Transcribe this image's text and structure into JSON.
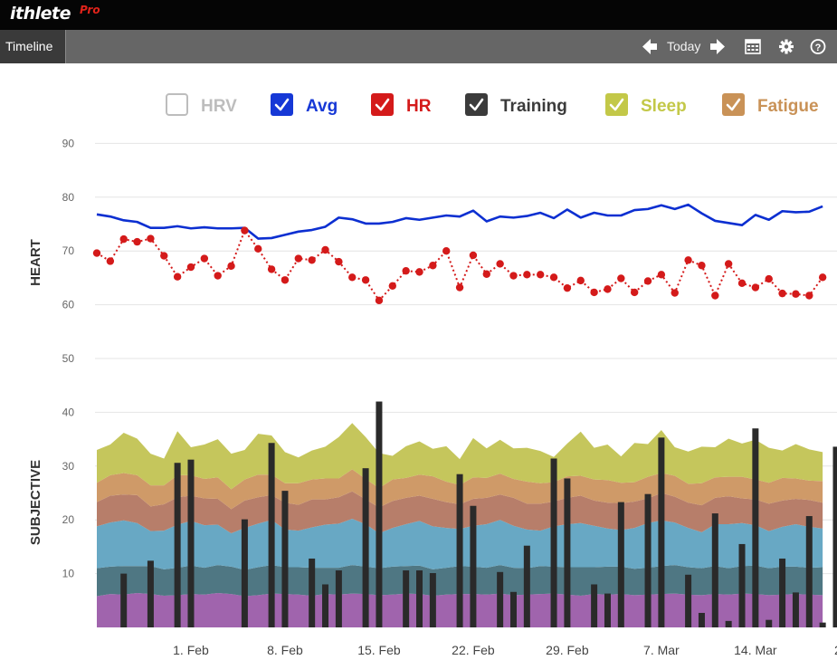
{
  "app": {
    "brand": "ithlete",
    "brand_sup": "Pro"
  },
  "toolbar": {
    "tab_label": "Timeline",
    "today_label": "Today"
  },
  "colors": {
    "avg": "#0c2fd1",
    "hr": "#d41a1a",
    "training": "#2a2a2a",
    "sleep_layer": "#c5c65c",
    "fatigue_layer": "#cf9a68",
    "layer3": "#b77e6a",
    "layer4": "#68a8c4",
    "layer5": "#4f7783",
    "layer6": "#a064ad",
    "hrv": "#bbbbbb"
  },
  "chart_data": {
    "type": "line",
    "legend_position": "top",
    "legend": [
      {
        "label": "HRV",
        "checked": false,
        "color": "#bdbdbd"
      },
      {
        "label": "Avg",
        "checked": true,
        "color": "#1638d6"
      },
      {
        "label": "HR",
        "checked": true,
        "color": "#d41a1a"
      },
      {
        "label": "Training",
        "checked": true,
        "color": "#3b3b3b"
      },
      {
        "label": "Sleep",
        "checked": true,
        "color": "#c3c848"
      },
      {
        "label": "Fatigue",
        "checked": true,
        "color": "#c99257"
      }
    ],
    "ylabel_top": "HEART",
    "ylabel_bottom": "SUBJECTIVE",
    "ylim": [
      0,
      90
    ],
    "yticks": [
      10,
      20,
      30,
      40,
      50,
      60,
      70,
      80,
      90
    ],
    "xticks": [
      "1. Feb",
      "8. Feb",
      "15. Feb",
      "22. Feb",
      "29. Feb",
      "7. Mar",
      "14. Mar"
    ],
    "x_start": "25. Jan",
    "x_end": "16. Mar",
    "grid": true,
    "avg": [
      76.8,
      76.4,
      75.7,
      75.4,
      74.3,
      74.3,
      74.6,
      74.2,
      74.4,
      74.2,
      74.2,
      74.3,
      72.3,
      72.4,
      73.0,
      73.6,
      73.9,
      74.5,
      76.2,
      75.9,
      75.1,
      75.1,
      75.4,
      76.1,
      75.8,
      76.2,
      76.6,
      76.4,
      77.5,
      75.5,
      76.4,
      76.2,
      76.5,
      77.1,
      76.1,
      77.7,
      76.2,
      77.1,
      76.6,
      76.6,
      77.6,
      77.8,
      78.5,
      77.8,
      78.6,
      77.0,
      75.6,
      75.2,
      74.8,
      76.7,
      75.8,
      77.4,
      77.2,
      77.3,
      78.3
    ],
    "hr": [
      69.6,
      68.1,
      72.2,
      71.7,
      72.3,
      69.1,
      65.2,
      67.0,
      68.6,
      65.4,
      67.2,
      73.8,
      70.4,
      66.6,
      64.6,
      68.6,
      68.3,
      70.2,
      68.0,
      65.1,
      64.6,
      60.8,
      63.5,
      66.3,
      66.1,
      67.3,
      70.0,
      63.2,
      69.2,
      65.7,
      67.6,
      65.4,
      65.6,
      65.6,
      65.1,
      63.1,
      64.5,
      62.3,
      62.9,
      64.9,
      62.3,
      64.4,
      65.6,
      62.2,
      68.3,
      67.3,
      61.7,
      67.6,
      64.0,
      63.2,
      64.8,
      62.1,
      62.0,
      61.7,
      65.1
    ],
    "training": [
      {
        "date": "27. Jan",
        "value": 10
      },
      {
        "date": "29. Jan",
        "value": 12.4
      },
      {
        "date": "31. Jan",
        "value": 30.6
      },
      {
        "date": "1. Feb",
        "value": 31.2
      },
      {
        "date": "5. Feb",
        "value": 20.1
      },
      {
        "date": "7. Feb",
        "value": 34.3
      },
      {
        "date": "8. Feb",
        "value": 25.4
      },
      {
        "date": "10. Feb",
        "value": 12.8
      },
      {
        "date": "11. Feb",
        "value": 8
      },
      {
        "date": "12. Feb",
        "value": 10.6
      },
      {
        "date": "14. Feb",
        "value": 29.6
      },
      {
        "date": "15. Feb",
        "value": 42
      },
      {
        "date": "17. Feb",
        "value": 10.6
      },
      {
        "date": "18. Feb",
        "value": 10.6
      },
      {
        "date": "19. Feb",
        "value": 10.1
      },
      {
        "date": "21. Feb",
        "value": 28.5
      },
      {
        "date": "22. Feb",
        "value": 22.6
      },
      {
        "date": "24. Feb",
        "value": 10.3
      },
      {
        "date": "25. Feb",
        "value": 6.6
      },
      {
        "date": "26. Feb",
        "value": 15.2
      },
      {
        "date": "28. Feb",
        "value": 31.4
      },
      {
        "date": "29. Feb",
        "value": 27.7
      },
      {
        "date": "2. Mar",
        "value": 8
      },
      {
        "date": "3. Mar",
        "value": 6.3
      },
      {
        "date": "4. Mar",
        "value": 23.3
      },
      {
        "date": "6. Mar",
        "value": 24.8
      },
      {
        "date": "7. Mar",
        "value": 35.3
      },
      {
        "date": "9. Mar",
        "value": 9.8
      },
      {
        "date": "10. Mar",
        "value": 2.7
      },
      {
        "date": "11. Mar",
        "value": 21.2
      },
      {
        "date": "12. Mar",
        "value": 1.2
      },
      {
        "date": "13. Mar",
        "value": 15.5
      },
      {
        "date": "14. Mar",
        "value": 37
      },
      {
        "date": "15. Mar",
        "value": 1.4
      },
      {
        "date": "16. Mar",
        "value": 12.8
      },
      {
        "date": "17. Mar",
        "value": 6.5
      },
      {
        "date": "18. Mar",
        "value": 20.7
      },
      {
        "date": "19. Mar",
        "value": 0.9
      },
      {
        "date": "20. Mar",
        "value": 33.6
      }
    ],
    "subjective_layers": [
      {
        "values": [
          5.8,
          6.2,
          6.1,
          6.4,
          6.2,
          5.9,
          6,
          6.2,
          6.1,
          6.4,
          6.2,
          5.8,
          6,
          6.3,
          6.2,
          6.1,
          5.9,
          6.2,
          6.1,
          6.3,
          6.2,
          6,
          6.1,
          6.3,
          6.2,
          5.9,
          6.1,
          6.2,
          6.2,
          6.1,
          6.3,
          6,
          6.1,
          6.2,
          6.3,
          6.1,
          5.9,
          6.2,
          6.1,
          6.2,
          6,
          6.1,
          6.2,
          6.3,
          6.1,
          6,
          6.2,
          6.1,
          6.3,
          6.2,
          6,
          6.1,
          6.2,
          6.1,
          6
        ]
      },
      {
        "values": [
          5.2,
          5.1,
          5.3,
          5.0,
          5.2,
          4.9,
          5.1,
          5.3,
          5.0,
          5.2,
          5.1,
          4.9,
          5.2,
          5.3,
          5.0,
          5.1,
          5.2,
          4.9,
          5.0,
          5.3,
          5.1,
          5.0,
          5.2,
          5.1,
          5.3,
          4.9,
          5.0,
          5.2,
          5.1,
          5.0,
          5.3,
          5.1,
          4.9,
          5.2,
          5.0,
          5.1,
          5.3,
          5.0,
          5.2,
          5.1,
          4.9,
          5.0,
          5.2,
          5.3,
          5.1,
          5.0,
          5.2,
          4.9,
          5.1,
          5.3,
          5.0,
          5.2,
          5.1,
          5.0,
          5.2
        ]
      },
      {
        "values": [
          7.8,
          8.2,
          8.5,
          8.0,
          6.5,
          7.2,
          8.0,
          8.3,
          7.9,
          7.5,
          6.2,
          7.8,
          8.1,
          8.4,
          7.0,
          6.8,
          7.5,
          8.0,
          8.2,
          8.6,
          7.9,
          6.5,
          7.2,
          7.8,
          8.3,
          8.0,
          7.4,
          6.9,
          7.6,
          8.1,
          8.4,
          7.8,
          7.2,
          6.6,
          7.5,
          8.0,
          8.2,
          7.7,
          7.1,
          6.8,
          7.6,
          8.3,
          8.5,
          7.9,
          7.3,
          6.7,
          7.8,
          8.2,
          8.0,
          7.5,
          6.9,
          7.4,
          7.9,
          7.6,
          7.2
        ]
      },
      {
        "values": [
          4.5,
          5.0,
          4.8,
          5.2,
          4.6,
          4.9,
          5.1,
          4.7,
          5.0,
          4.8,
          4.5,
          5.1,
          4.9,
          4.6,
          5.0,
          4.8,
          5.2,
          4.7,
          4.9,
          5.1,
          4.6,
          4.8,
          5.0,
          4.9,
          4.7,
          5.1,
          4.8,
          4.6,
          5.0,
          4.9,
          4.7,
          5.2,
          4.8,
          5.0,
          4.6,
          4.9,
          5.1,
          4.7,
          4.8,
          5.0,
          4.9,
          4.6,
          5.1,
          4.8,
          4.7,
          5.0,
          4.9,
          5.2,
          4.6,
          4.8,
          5.1,
          4.9,
          4.7,
          5.0,
          4.8
        ]
      },
      {
        "values": [
          3.6,
          3.8,
          4.0,
          3.7,
          3.9,
          3.5,
          4.1,
          3.8,
          3.6,
          4.0,
          3.7,
          3.9,
          4.2,
          3.8,
          3.6,
          4.0,
          3.7,
          3.9,
          3.5,
          4.1,
          3.8,
          3.6,
          4.0,
          3.7,
          3.9,
          4.2,
          3.8,
          3.6,
          4.0,
          3.7,
          3.9,
          3.5,
          4.1,
          3.8,
          3.6,
          4.0,
          3.7,
          3.9,
          4.2,
          3.8,
          3.6,
          4.0,
          3.7,
          3.9,
          3.5,
          4.1,
          3.8,
          3.6,
          4.0,
          3.7,
          3.9,
          4.2,
          3.8,
          3.6,
          4.0
        ]
      },
      {
        "values": [
          6.1,
          5.7,
          7.5,
          6.8,
          5.9,
          5.0,
          8.2,
          5.2,
          6.4,
          7.1,
          6.6,
          5.5,
          7.6,
          7.3,
          5.8,
          4.8,
          5.4,
          5.9,
          7.7,
          8.6,
          7.8,
          6.5,
          4.4,
          5.9,
          6.2,
          5.1,
          6.6,
          4.8,
          7.3,
          5.5,
          6.3,
          5.7,
          6.3,
          6.0,
          4.7,
          6.1,
          8.2,
          5.9,
          6.6,
          4.9,
          7.3,
          6.1,
          8.0,
          5.3,
          6.0,
          6.8,
          5.6,
          7.1,
          6.2,
          7.4,
          6.5,
          5.1,
          6.4,
          5.8,
          5.4
        ]
      }
    ]
  }
}
